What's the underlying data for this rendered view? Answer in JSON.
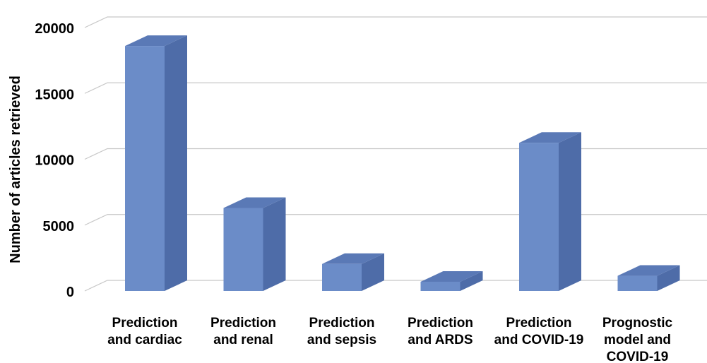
{
  "chart_data": {
    "type": "bar",
    "style": "3d-column",
    "title": "",
    "xlabel": "",
    "ylabel": "Number of articles retrieved",
    "ylim": [
      0,
      20000
    ],
    "yticks": [
      "0",
      "5000",
      "10000",
      "15000",
      "20000"
    ],
    "grid": true,
    "categories": [
      [
        "Prediction",
        "and cardiac"
      ],
      [
        "Prediction",
        "and renal"
      ],
      [
        "Prediction",
        "and sepsis"
      ],
      [
        "Prediction",
        "and ARDS"
      ],
      [
        "Prediction",
        "and COVID-19"
      ],
      [
        "Prognostic",
        "model and",
        "COVID-19"
      ]
    ],
    "values": [
      18600,
      6300,
      2050,
      700,
      11250,
      1150
    ],
    "colors": {
      "front": "#6b8cc8",
      "side": "#4e6ca8",
      "top": "#5a79b6",
      "grid": "#c8c8c8"
    }
  }
}
